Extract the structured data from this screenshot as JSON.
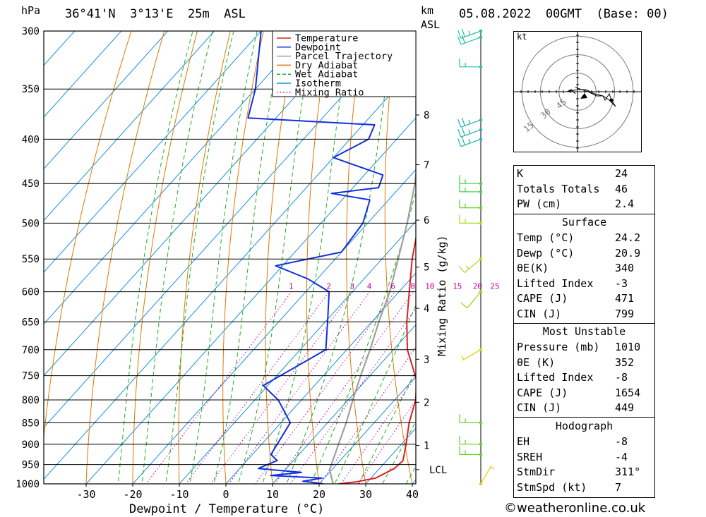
{
  "header": {
    "hpa_label": "hPa",
    "location": "36°41'N  3°13'E  25m  ASL",
    "km_label": "km",
    "asl_label": "ASL",
    "run": "05.08.2022  00GMT  (Base: 00)"
  },
  "credit": "©weatheronline.co.uk",
  "chart_data": {
    "type": "line",
    "title": "",
    "xlabel": "Dewpoint / Temperature (°C)",
    "ylabel": "hPa",
    "xlim": [
      -40,
      40
    ],
    "ylim": [
      1000,
      300
    ],
    "y_scale": "log (skew-T)",
    "x_ticks": [
      "-30",
      "-20",
      "-10",
      "0",
      "10",
      "20",
      "30",
      "40"
    ],
    "y_ticks": [
      "300",
      "350",
      "400",
      "450",
      "500",
      "550",
      "600",
      "650",
      "700",
      "750",
      "800",
      "850",
      "900",
      "950",
      "1000"
    ],
    "km_ticks": [
      {
        "label": "8",
        "p": 375
      },
      {
        "label": "7",
        "p": 428
      },
      {
        "label": "6",
        "p": 496
      },
      {
        "label": "5",
        "p": 562
      },
      {
        "label": "4",
        "p": 627
      },
      {
        "label": "3",
        "p": 718
      },
      {
        "label": "2",
        "p": 805
      },
      {
        "label": "1",
        "p": 903
      },
      {
        "label": "LCL",
        "p": 963
      }
    ],
    "mixing_ratio_axis_label": "Mixing Ratio (g/kg)",
    "mixing_ratio_labels": [
      "1",
      "2",
      "3",
      "4",
      "6",
      "8",
      "10",
      "15",
      "20",
      "25"
    ],
    "legend": {
      "placement": "top-right",
      "entries": [
        {
          "name": "Temperature",
          "color": "#e02020",
          "style": "solid"
        },
        {
          "name": "Dewpoint",
          "color": "#1030e0",
          "style": "solid"
        },
        {
          "name": "Parcel Trajectory",
          "color": "#a0a0a0",
          "style": "solid"
        },
        {
          "name": "Dry Adiabat",
          "color": "#e07800",
          "style": "solid"
        },
        {
          "name": "Wet Adiabat",
          "color": "#20b020",
          "style": "dashed"
        },
        {
          "name": "Isotherm",
          "color": "#1890e0",
          "style": "solid"
        },
        {
          "name": "Mixing Ratio",
          "color": "#c000a0",
          "style": "dotted"
        }
      ]
    },
    "series": [
      {
        "name": "Temperature",
        "points": [
          {
            "p": 1000,
            "t": 24.2
          },
          {
            "p": 995,
            "t": 27.5
          },
          {
            "p": 985,
            "t": 31.0
          },
          {
            "p": 960,
            "t": 33.2
          },
          {
            "p": 940,
            "t": 33.5
          },
          {
            "p": 900,
            "t": 31.0
          },
          {
            "p": 850,
            "t": 27.5
          },
          {
            "p": 800,
            "t": 24.5
          },
          {
            "p": 760,
            "t": 21.0
          },
          {
            "p": 700,
            "t": 13.0
          },
          {
            "p": 650,
            "t": 7.5
          },
          {
            "p": 600,
            "t": 2.2
          },
          {
            "p": 550,
            "t": -3.5
          },
          {
            "p": 500,
            "t": -9.0
          },
          {
            "p": 450,
            "t": -14.5
          },
          {
            "p": 425,
            "t": -18.5
          },
          {
            "p": 400,
            "t": -22.5
          },
          {
            "p": 380,
            "t": -26.0
          },
          {
            "p": 370,
            "t": -25.5
          },
          {
            "p": 350,
            "t": -27.5
          },
          {
            "p": 300,
            "t": -38.0
          }
        ]
      },
      {
        "name": "Dewpoint",
        "points": [
          {
            "p": 1000,
            "t": 20.9
          },
          {
            "p": 993,
            "t": 16.0
          },
          {
            "p": 985,
            "t": 19.5
          },
          {
            "p": 978,
            "t": 8.0
          },
          {
            "p": 970,
            "t": 14.0
          },
          {
            "p": 960,
            "t": 4.0
          },
          {
            "p": 940,
            "t": 6.5
          },
          {
            "p": 925,
            "t": 4.0
          },
          {
            "p": 850,
            "t": 2.0
          },
          {
            "p": 800,
            "t": -5.0
          },
          {
            "p": 770,
            "t": -11.0
          },
          {
            "p": 700,
            "t": -4.5
          },
          {
            "p": 650,
            "t": -9.5
          },
          {
            "p": 600,
            "t": -15.0
          },
          {
            "p": 580,
            "t": -22.0
          },
          {
            "p": 560,
            "t": -31.5
          },
          {
            "p": 540,
            "t": -20.0
          },
          {
            "p": 500,
            "t": -21.0
          },
          {
            "p": 470,
            "t": -24.0
          },
          {
            "p": 462,
            "t": -33.5
          },
          {
            "p": 455,
            "t": -24.5
          },
          {
            "p": 440,
            "t": -26.0
          },
          {
            "p": 420,
            "t": -40.0
          },
          {
            "p": 400,
            "t": -36.0
          },
          {
            "p": 385,
            "t": -37.5
          },
          {
            "p": 378,
            "t": -66.0
          },
          {
            "p": 350,
            "t": -70.0
          },
          {
            "p": 300,
            "t": -80.0
          }
        ]
      },
      {
        "name": "Parcel Trajectory",
        "points": [
          {
            "p": 1000,
            "t": 23.0
          },
          {
            "p": 963,
            "t": 19.5
          },
          {
            "p": 900,
            "t": 16.5
          },
          {
            "p": 850,
            "t": 14.0
          },
          {
            "p": 800,
            "t": 11.0
          },
          {
            "p": 750,
            "t": 8.0
          },
          {
            "p": 700,
            "t": 5.0
          },
          {
            "p": 650,
            "t": 1.5
          },
          {
            "p": 600,
            "t": -2.0
          },
          {
            "p": 550,
            "t": -6.5
          },
          {
            "p": 500,
            "t": -11.5
          },
          {
            "p": 450,
            "t": -17.5
          },
          {
            "p": 400,
            "t": -25.0
          },
          {
            "p": 350,
            "t": -34.0
          },
          {
            "p": 310,
            "t": -42.5
          }
        ]
      }
    ],
    "hodograph": {
      "unit_label": "kt",
      "ring_labels": [
        "15",
        "30",
        "45"
      ],
      "points_kt": [
        [
          -1,
          2
        ],
        [
          5,
          0
        ],
        [
          9,
          -2
        ],
        [
          12,
          -2
        ],
        [
          13,
          -4
        ],
        [
          15,
          -1
        ],
        [
          16,
          -4
        ],
        [
          18,
          -7
        ],
        [
          15,
          -4
        ],
        [
          12,
          -2
        ],
        [
          8,
          -1
        ],
        [
          4,
          1
        ],
        [
          0,
          1
        ],
        [
          -5,
          0
        ],
        [
          -3,
          1
        ],
        [
          -1,
          -1
        ]
      ]
    },
    "wind_barbs": [
      {
        "p": 1000,
        "dir_deg": 30,
        "speed_kt": 5,
        "color": "#e0d000"
      },
      {
        "p": 925,
        "dir_deg": 270,
        "speed_kt": 15,
        "color": "#60d020"
      },
      {
        "p": 900,
        "dir_deg": 270,
        "speed_kt": 15,
        "color": "#60d020"
      },
      {
        "p": 850,
        "dir_deg": 270,
        "speed_kt": 15,
        "color": "#60d020"
      },
      {
        "p": 700,
        "dir_deg": 240,
        "speed_kt": 5,
        "color": "#e0d000"
      },
      {
        "p": 600,
        "dir_deg": 220,
        "speed_kt": 10,
        "color": "#a0d000"
      },
      {
        "p": 550,
        "dir_deg": 230,
        "speed_kt": 15,
        "color": "#c0d020"
      },
      {
        "p": 500,
        "dir_deg": 270,
        "speed_kt": 15,
        "color": "#a0e020"
      },
      {
        "p": 480,
        "dir_deg": 270,
        "speed_kt": 15,
        "color": "#60d020"
      },
      {
        "p": 460,
        "dir_deg": 270,
        "speed_kt": 15,
        "color": "#40d040"
      },
      {
        "p": 450,
        "dir_deg": 270,
        "speed_kt": 15,
        "color": "#40d040"
      },
      {
        "p": 400,
        "dir_deg": 250,
        "speed_kt": 25,
        "color": "#20b0b0"
      },
      {
        "p": 390,
        "dir_deg": 250,
        "speed_kt": 25,
        "color": "#20b0b0"
      },
      {
        "p": 380,
        "dir_deg": 250,
        "speed_kt": 25,
        "color": "#20b0b0"
      },
      {
        "p": 330,
        "dir_deg": 270,
        "speed_kt": 15,
        "color": "#20c0a0"
      },
      {
        "p": 305,
        "dir_deg": 250,
        "speed_kt": 20,
        "color": "#20c0a0"
      },
      {
        "p": 300,
        "dir_deg": 250,
        "speed_kt": 25,
        "color": "#20c0a0"
      }
    ]
  },
  "indices": {
    "general": [
      {
        "label": "K",
        "value": "24"
      },
      {
        "label": "Totals Totals",
        "value": "46"
      },
      {
        "label": "PW (cm)",
        "value": "2.4"
      }
    ],
    "surface_title": "Surface",
    "surface": [
      {
        "label": "Temp (°C)",
        "value": "24.2"
      },
      {
        "label": "Dewp (°C)",
        "value": "20.9"
      },
      {
        "label": "θE(K)",
        "value": "340"
      },
      {
        "label": "Lifted Index",
        "value": "-3"
      },
      {
        "label": "CAPE (J)",
        "value": "471"
      },
      {
        "label": "CIN (J)",
        "value": "799"
      }
    ],
    "unstable_title": "Most Unstable",
    "unstable": [
      {
        "label": "Pressure (mb)",
        "value": "1010"
      },
      {
        "label": "θE (K)",
        "value": "352"
      },
      {
        "label": "Lifted Index",
        "value": "-8"
      },
      {
        "label": "CAPE (J)",
        "value": "1654"
      },
      {
        "label": "CIN (J)",
        "value": "449"
      }
    ],
    "hodo_title": "Hodograph",
    "hodo": [
      {
        "label": "EH",
        "value": "-8"
      },
      {
        "label": "SREH",
        "value": "-4"
      },
      {
        "label": "StmDir",
        "value": "311°"
      },
      {
        "label": "StmSpd (kt)",
        "value": "7"
      }
    ]
  }
}
